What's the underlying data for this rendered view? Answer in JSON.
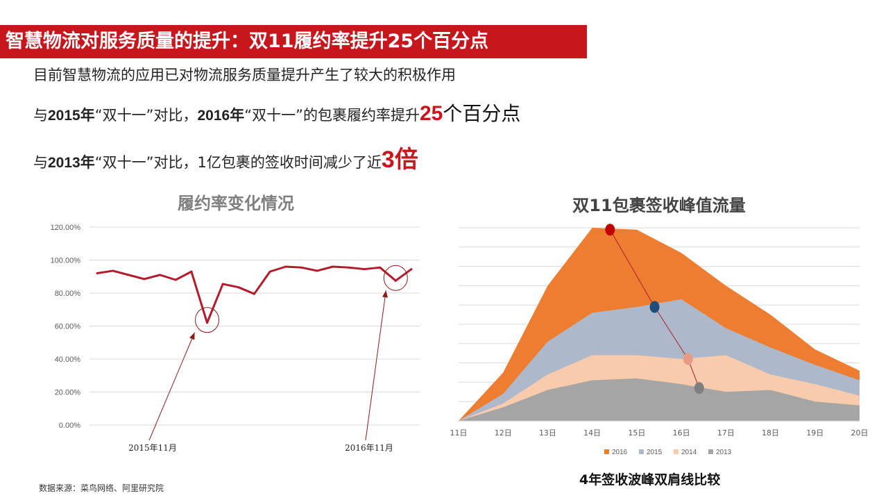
{
  "header": {
    "title": "智慧物流对服务质量的提升：双11履约率提升25个百分点"
  },
  "intro": "目前智慧物流的应用已对物流服务质量提升产生了较大的积极作用",
  "points": [
    {
      "prefix": "与",
      "year": "2015年",
      "middle1": "“双十一”对比，",
      "year2": "2016年",
      "middle2": "“双十一”的包裹履约率提升",
      "highlight": "25",
      "suffix": "个百分点"
    },
    {
      "prefix": "与",
      "year": "2013年",
      "middle": "“双十一”对比，1亿包裹的签收时间减少了近",
      "highlight": "3倍"
    }
  ],
  "source": "数据来源：菜鸟网络、阿里研究院",
  "caption": "4年签收波峰双肩线比较",
  "colors": {
    "brand_red": "#c8161d",
    "line_red": "#b31b2a",
    "s2016": "#ed7d31",
    "s2015": "#adb9ca",
    "s2014": "#f8cbad",
    "s2013": "#a5a5a5"
  },
  "chart_data": [
    {
      "type": "line",
      "title": "履约率变化情况",
      "ylim": [
        0,
        120
      ],
      "y_tick_labels": [
        "0.00%",
        "20.00%",
        "40.00%",
        "60.00%",
        "80.00%",
        "100.00%",
        "120.00%"
      ],
      "grid": true,
      "series": [
        {
          "values": [
            92,
            93.5,
            91,
            88.5,
            91,
            88,
            93,
            62,
            85.5,
            83.5,
            79.5,
            93,
            96,
            95.5,
            93.5,
            96,
            95.5,
            94.5,
            95.5,
            87.5,
            94.5
          ]
        }
      ],
      "annotations": [
        {
          "text": "2015年11月",
          "point_index": 7
        },
        {
          "text": "2016年11月",
          "point_index": 19
        }
      ]
    },
    {
      "type": "area",
      "title": "双11包裹签收峰值流量",
      "categories": [
        "11日",
        "12日",
        "13日",
        "14日",
        "15日",
        "16日",
        "17日",
        "18日",
        "19日",
        "20日"
      ],
      "ylim": [
        0,
        100
      ],
      "grid": true,
      "legend_position": "bottom",
      "series": [
        {
          "name": "2016",
          "values": [
            0,
            25,
            70,
            100,
            99,
            87,
            70,
            55,
            37,
            26
          ]
        },
        {
          "name": "2015",
          "values": [
            0,
            14,
            41,
            56,
            59,
            63,
            48,
            38,
            29,
            21
          ]
        },
        {
          "name": "2014",
          "values": [
            0,
            9,
            24,
            34,
            34,
            32,
            34,
            24,
            19,
            13
          ]
        },
        {
          "name": "2013",
          "values": [
            0,
            7,
            16,
            21,
            22,
            19,
            15,
            16,
            10,
            8
          ]
        }
      ],
      "peak_markers": [
        {
          "series": "2016",
          "x": 14.4,
          "y": 99
        },
        {
          "series": "2015",
          "x": 15.4,
          "y": 59
        },
        {
          "series": "2014",
          "x": 16.15,
          "y": 32
        },
        {
          "series": "2013",
          "x": 16.4,
          "y": 17
        }
      ]
    }
  ]
}
